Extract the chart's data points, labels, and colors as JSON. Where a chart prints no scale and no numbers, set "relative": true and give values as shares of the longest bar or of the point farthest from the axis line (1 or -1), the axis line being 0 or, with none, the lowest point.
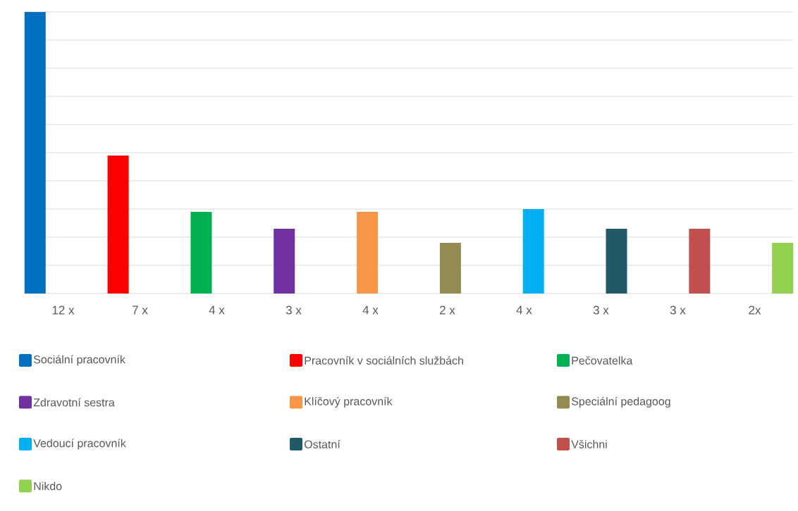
{
  "chart_data": {
    "type": "bar",
    "relative": true,
    "grid": "y",
    "legend": "bottom",
    "categories": [
      "12 x",
      "7 x",
      "4 x",
      "3 x",
      "4 x",
      "2 x",
      "4 x",
      "3 x",
      "3 x",
      "2x"
    ],
    "series": [
      {
        "name": "Sociální pracovník",
        "color": "#0070c0",
        "values": [
          1,
          null,
          null,
          null,
          null,
          null,
          null,
          null,
          null,
          null
        ]
      },
      {
        "name": "Pracovník v sociálních službách",
        "color": "#ff0000",
        "values": [
          null,
          0.49,
          null,
          null,
          null,
          null,
          null,
          null,
          null,
          null
        ]
      },
      {
        "name": "Pečovatelka",
        "color": "#00b050",
        "values": [
          null,
          null,
          0.29,
          null,
          null,
          null,
          null,
          null,
          null,
          null
        ]
      },
      {
        "name": "Zdravotní sestra",
        "color": "#7030a0",
        "values": [
          null,
          null,
          null,
          0.23,
          null,
          null,
          null,
          null,
          null,
          null
        ]
      },
      {
        "name": "Klíčový pracovník",
        "color": "#f79646",
        "values": [
          null,
          null,
          null,
          null,
          0.29,
          null,
          null,
          null,
          null,
          null
        ]
      },
      {
        "name": "Speciální pedagoog",
        "color": "#948a54",
        "values": [
          null,
          null,
          null,
          null,
          null,
          0.18,
          null,
          null,
          null,
          null
        ]
      },
      {
        "name": "Vedoucí pracovník",
        "color": "#00b0f0",
        "values": [
          null,
          null,
          null,
          null,
          null,
          null,
          0.3,
          null,
          null,
          null
        ]
      },
      {
        "name": "Ostatní",
        "color": "#215968",
        "values": [
          null,
          null,
          null,
          null,
          null,
          null,
          null,
          0.23,
          null,
          null
        ]
      },
      {
        "name": "Všichni",
        "color": "#c0504d",
        "values": [
          null,
          null,
          null,
          null,
          null,
          null,
          null,
          null,
          0.23,
          null
        ]
      },
      {
        "name": "Nikdo",
        "color": "#92d050",
        "values": [
          null,
          null,
          null,
          null,
          null,
          null,
          null,
          null,
          null,
          0.18
        ]
      }
    ]
  }
}
